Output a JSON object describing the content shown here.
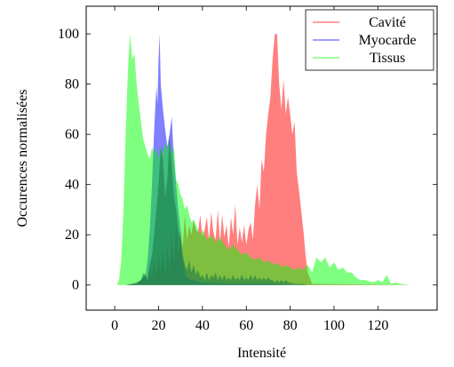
{
  "chart_data": {
    "type": "area",
    "xlabel": "Intensité",
    "ylabel": "Occurences normalisées",
    "xlim": [
      -13,
      147
    ],
    "ylim": [
      -10,
      111
    ],
    "xticks": [
      0,
      20,
      40,
      60,
      80,
      100,
      120
    ],
    "yticks": [
      0,
      20,
      40,
      60,
      80,
      100
    ],
    "legend_position": "top-right",
    "series": [
      {
        "name": "Cavité",
        "color": "#ff0000",
        "fill_opacity": 0.5,
        "points": [
          [
            0,
            0
          ],
          [
            5,
            0
          ],
          [
            10,
            0.5
          ],
          [
            12,
            2
          ],
          [
            14,
            5
          ],
          [
            15,
            1
          ],
          [
            16,
            8
          ],
          [
            17,
            2
          ],
          [
            18,
            10
          ],
          [
            19,
            4
          ],
          [
            20,
            12
          ],
          [
            21,
            5
          ],
          [
            22,
            14
          ],
          [
            23,
            3
          ],
          [
            24,
            15
          ],
          [
            25,
            6
          ],
          [
            26,
            20
          ],
          [
            27,
            8
          ],
          [
            28,
            25
          ],
          [
            29,
            12
          ],
          [
            30,
            22
          ],
          [
            31,
            15
          ],
          [
            32,
            28
          ],
          [
            33,
            18
          ],
          [
            34,
            24
          ],
          [
            35,
            20
          ],
          [
            36,
            26
          ],
          [
            37,
            22
          ],
          [
            38,
            21
          ],
          [
            39,
            28
          ],
          [
            40,
            19
          ],
          [
            41,
            22
          ],
          [
            42,
            27
          ],
          [
            43,
            18
          ],
          [
            44,
            29
          ],
          [
            45,
            21
          ],
          [
            46,
            18
          ],
          [
            47,
            30
          ],
          [
            48,
            17
          ],
          [
            49,
            28
          ],
          [
            50,
            19
          ],
          [
            51,
            24
          ],
          [
            52,
            15
          ],
          [
            53,
            27
          ],
          [
            54,
            20
          ],
          [
            55,
            32
          ],
          [
            56,
            16
          ],
          [
            57,
            23
          ],
          [
            58,
            17
          ],
          [
            59,
            24
          ],
          [
            60,
            16
          ],
          [
            61,
            22
          ],
          [
            62,
            25
          ],
          [
            63,
            18
          ],
          [
            64,
            32
          ],
          [
            65,
            40
          ],
          [
            66,
            30
          ],
          [
            67,
            50
          ],
          [
            68,
            45
          ],
          [
            69,
            60
          ],
          [
            70,
            68
          ],
          [
            71,
            75
          ],
          [
            72,
            90
          ],
          [
            73,
            100
          ],
          [
            74,
            100
          ],
          [
            75,
            80
          ],
          [
            76,
            70
          ],
          [
            77,
            82
          ],
          [
            78,
            68
          ],
          [
            79,
            75
          ],
          [
            80,
            68
          ],
          [
            81,
            60
          ],
          [
            82,
            65
          ],
          [
            83,
            45
          ],
          [
            84,
            38
          ],
          [
            85,
            30
          ],
          [
            86,
            22
          ],
          [
            87,
            12
          ],
          [
            88,
            5
          ],
          [
            90,
            0.5
          ],
          [
            135,
            0
          ]
        ]
      },
      {
        "name": "Myocarde",
        "color": "#0000ff",
        "fill_opacity": 0.5,
        "points": [
          [
            0,
            0
          ],
          [
            5,
            0
          ],
          [
            8,
            0.5
          ],
          [
            10,
            0.5
          ],
          [
            12,
            2
          ],
          [
            13,
            5
          ],
          [
            14,
            3
          ],
          [
            15,
            10
          ],
          [
            16,
            22
          ],
          [
            17,
            40
          ],
          [
            18,
            62
          ],
          [
            19,
            79
          ],
          [
            19.5,
            72
          ],
          [
            20,
            90
          ],
          [
            20.5,
            100
          ],
          [
            21,
            80
          ],
          [
            22,
            70
          ],
          [
            23,
            62
          ],
          [
            24,
            55
          ],
          [
            25,
            60
          ],
          [
            26,
            67
          ],
          [
            27,
            50
          ],
          [
            28,
            40
          ],
          [
            29,
            30
          ],
          [
            30,
            22
          ],
          [
            31,
            10
          ],
          [
            32,
            5
          ],
          [
            33,
            3
          ],
          [
            35,
            2
          ],
          [
            40,
            1
          ],
          [
            50,
            0.5
          ],
          [
            60,
            0.5
          ],
          [
            70,
            0.5
          ],
          [
            80,
            0
          ],
          [
            135,
            0
          ]
        ]
      },
      {
        "name": "Tissus",
        "color": "#00ff00",
        "fill_opacity": 0.5,
        "points": [
          [
            0,
            0
          ],
          [
            1,
            0
          ],
          [
            2,
            2
          ],
          [
            3,
            10
          ],
          [
            4,
            30
          ],
          [
            5,
            60
          ],
          [
            6,
            85
          ],
          [
            7,
            100
          ],
          [
            8,
            90
          ],
          [
            9,
            92
          ],
          [
            10,
            80
          ],
          [
            11,
            72
          ],
          [
            12,
            65
          ],
          [
            13,
            58
          ],
          [
            14,
            55
          ],
          [
            15,
            52
          ],
          [
            16,
            50
          ],
          [
            17,
            55
          ],
          [
            18,
            52
          ],
          [
            19,
            55
          ],
          [
            20,
            50
          ],
          [
            21,
            55
          ],
          [
            22,
            52
          ],
          [
            23,
            57
          ],
          [
            24,
            54
          ],
          [
            25,
            57
          ],
          [
            26,
            52
          ],
          [
            27,
            55
          ],
          [
            28,
            42
          ],
          [
            29,
            40
          ],
          [
            30,
            36
          ],
          [
            31,
            34
          ],
          [
            32,
            30
          ],
          [
            33,
            32
          ],
          [
            34,
            28
          ],
          [
            35,
            25
          ],
          [
            36,
            26
          ],
          [
            37,
            24
          ],
          [
            38,
            22
          ],
          [
            39,
            20
          ],
          [
            40,
            22
          ],
          [
            42,
            18
          ],
          [
            44,
            20
          ],
          [
            46,
            17
          ],
          [
            48,
            19
          ],
          [
            50,
            16
          ],
          [
            52,
            14
          ],
          [
            54,
            16
          ],
          [
            56,
            14
          ],
          [
            58,
            12
          ],
          [
            60,
            13
          ],
          [
            62,
            11
          ],
          [
            64,
            10
          ],
          [
            66,
            11
          ],
          [
            68,
            9
          ],
          [
            70,
            10
          ],
          [
            72,
            8
          ],
          [
            74,
            9
          ],
          [
            76,
            7
          ],
          [
            78,
            8
          ],
          [
            80,
            7
          ],
          [
            82,
            6
          ],
          [
            84,
            7
          ],
          [
            86,
            6
          ],
          [
            88,
            8
          ],
          [
            90,
            5
          ],
          [
            92,
            11
          ],
          [
            94,
            9
          ],
          [
            96,
            11
          ],
          [
            98,
            7
          ],
          [
            100,
            9
          ],
          [
            102,
            6
          ],
          [
            104,
            7
          ],
          [
            106,
            5
          ],
          [
            108,
            5
          ],
          [
            110,
            3
          ],
          [
            112,
            2
          ],
          [
            114,
            2
          ],
          [
            116,
            1.5
          ],
          [
            118,
            1
          ],
          [
            120,
            2
          ],
          [
            122,
            1
          ],
          [
            124,
            4
          ],
          [
            126,
            0.5
          ],
          [
            128,
            1
          ],
          [
            130,
            0.5
          ],
          [
            135,
            0
          ]
        ]
      },
      {
        "name": "",
        "color": "#1a7a4a",
        "fill_opacity": 0.6,
        "points": [
          [
            0,
            0
          ],
          [
            5,
            0
          ],
          [
            8,
            0.5
          ],
          [
            10,
            1
          ],
          [
            12,
            2
          ],
          [
            14,
            4
          ],
          [
            15,
            2
          ],
          [
            16,
            8
          ],
          [
            17,
            12
          ],
          [
            18,
            20
          ],
          [
            19,
            30
          ],
          [
            20,
            40
          ],
          [
            21,
            55
          ],
          [
            22,
            50
          ],
          [
            23,
            35
          ],
          [
            24,
            42
          ],
          [
            25,
            60
          ],
          [
            26,
            48
          ],
          [
            27,
            35
          ],
          [
            28,
            30
          ],
          [
            29,
            22
          ],
          [
            30,
            18
          ],
          [
            31,
            12
          ],
          [
            32,
            8
          ],
          [
            33,
            6
          ],
          [
            34,
            10
          ],
          [
            35,
            5
          ],
          [
            36,
            8
          ],
          [
            37,
            4
          ],
          [
            38,
            6
          ],
          [
            39,
            3
          ],
          [
            40,
            4
          ],
          [
            41,
            2
          ],
          [
            42,
            5
          ],
          [
            43,
            2
          ],
          [
            44,
            4
          ],
          [
            45,
            3
          ],
          [
            46,
            5
          ],
          [
            47,
            2
          ],
          [
            48,
            4
          ],
          [
            49,
            2
          ],
          [
            50,
            4
          ],
          [
            51,
            2
          ],
          [
            52,
            3
          ],
          [
            53,
            2
          ],
          [
            54,
            4
          ],
          [
            55,
            2
          ],
          [
            56,
            3
          ],
          [
            57,
            2
          ],
          [
            58,
            4
          ],
          [
            59,
            2
          ],
          [
            60,
            3
          ],
          [
            61,
            2
          ],
          [
            62,
            4
          ],
          [
            63,
            2
          ],
          [
            64,
            4
          ],
          [
            65,
            2
          ],
          [
            66,
            3
          ],
          [
            67,
            2
          ],
          [
            68,
            3
          ],
          [
            69,
            2
          ],
          [
            70,
            3
          ],
          [
            71,
            2
          ],
          [
            72,
            2
          ],
          [
            73,
            1
          ],
          [
            74,
            2
          ],
          [
            75,
            1
          ],
          [
            76,
            2
          ],
          [
            77,
            1
          ],
          [
            78,
            2
          ],
          [
            79,
            1
          ],
          [
            80,
            1
          ],
          [
            82,
            0.5
          ],
          [
            84,
            0.5
          ],
          [
            86,
            0.5
          ],
          [
            88,
            0
          ],
          [
            135,
            0
          ]
        ]
      }
    ]
  }
}
